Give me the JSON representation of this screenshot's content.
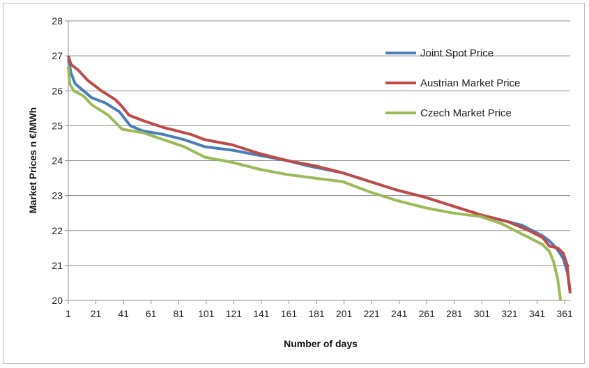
{
  "chart_data": {
    "type": "line",
    "title": "",
    "xlabel": "Number of days",
    "ylabel": "Market Prices n €/MWh",
    "xlim": [
      1,
      365
    ],
    "ylim": [
      20,
      28
    ],
    "xticks": [
      "1",
      "21",
      "41",
      "61",
      "81",
      "101",
      "121",
      "141",
      "161",
      "181",
      "201",
      "221",
      "241",
      "261",
      "281",
      "301",
      "321",
      "341",
      "361"
    ],
    "yticks": [
      "20",
      "21",
      "22",
      "23",
      "24",
      "25",
      "26",
      "27",
      "28"
    ],
    "grid": "horizontal",
    "legend_position": "top-right",
    "series": [
      {
        "name": "Joint Spot Price",
        "color": "#4a7ebb",
        "points": [
          [
            1,
            26.9
          ],
          [
            3,
            26.5
          ],
          [
            6,
            26.2
          ],
          [
            12,
            26.0
          ],
          [
            18,
            25.8
          ],
          [
            28,
            25.65
          ],
          [
            38,
            25.4
          ],
          [
            42,
            25.2
          ],
          [
            46,
            25.0
          ],
          [
            55,
            24.85
          ],
          [
            70,
            24.75
          ],
          [
            85,
            24.6
          ],
          [
            100,
            24.4
          ],
          [
            120,
            24.3
          ],
          [
            140,
            24.15
          ],
          [
            160,
            24.0
          ],
          [
            175,
            23.85
          ],
          [
            200,
            23.65
          ],
          [
            220,
            23.4
          ],
          [
            240,
            23.15
          ],
          [
            260,
            22.95
          ],
          [
            280,
            22.7
          ],
          [
            300,
            22.45
          ],
          [
            320,
            22.25
          ],
          [
            330,
            22.15
          ],
          [
            345,
            21.85
          ],
          [
            350,
            21.7
          ],
          [
            355,
            21.5
          ],
          [
            360,
            21.2
          ],
          [
            363,
            20.8
          ],
          [
            365,
            20.3
          ]
        ]
      },
      {
        "name": "Austrian Market Price",
        "color": "#be4b48",
        "points": [
          [
            1,
            27.0
          ],
          [
            3,
            26.75
          ],
          [
            8,
            26.6
          ],
          [
            15,
            26.3
          ],
          [
            25,
            26.0
          ],
          [
            35,
            25.75
          ],
          [
            40,
            25.55
          ],
          [
            45,
            25.3
          ],
          [
            55,
            25.15
          ],
          [
            70,
            24.95
          ],
          [
            90,
            24.75
          ],
          [
            100,
            24.6
          ],
          [
            120,
            24.45
          ],
          [
            140,
            24.2
          ],
          [
            160,
            24.0
          ],
          [
            180,
            23.85
          ],
          [
            200,
            23.65
          ],
          [
            220,
            23.4
          ],
          [
            240,
            23.15
          ],
          [
            260,
            22.95
          ],
          [
            280,
            22.7
          ],
          [
            300,
            22.45
          ],
          [
            320,
            22.25
          ],
          [
            335,
            22.0
          ],
          [
            345,
            21.8
          ],
          [
            350,
            21.55
          ],
          [
            356,
            21.5
          ],
          [
            360,
            21.35
          ],
          [
            363,
            21.0
          ],
          [
            364,
            20.5
          ],
          [
            365,
            20.2
          ]
        ]
      },
      {
        "name": "Czech Market Price",
        "color": "#9bbb59",
        "points": [
          [
            1,
            26.7
          ],
          [
            2,
            26.2
          ],
          [
            5,
            26.0
          ],
          [
            12,
            25.85
          ],
          [
            18,
            25.6
          ],
          [
            30,
            25.3
          ],
          [
            40,
            24.9
          ],
          [
            55,
            24.8
          ],
          [
            70,
            24.6
          ],
          [
            85,
            24.4
          ],
          [
            100,
            24.1
          ],
          [
            120,
            23.95
          ],
          [
            140,
            23.75
          ],
          [
            160,
            23.6
          ],
          [
            180,
            23.5
          ],
          [
            200,
            23.4
          ],
          [
            220,
            23.1
          ],
          [
            240,
            22.85
          ],
          [
            260,
            22.65
          ],
          [
            280,
            22.5
          ],
          [
            300,
            22.4
          ],
          [
            315,
            22.2
          ],
          [
            330,
            21.9
          ],
          [
            345,
            21.6
          ],
          [
            350,
            21.4
          ],
          [
            353,
            21.1
          ],
          [
            356,
            20.6
          ],
          [
            358,
            20.0
          ]
        ]
      }
    ]
  }
}
